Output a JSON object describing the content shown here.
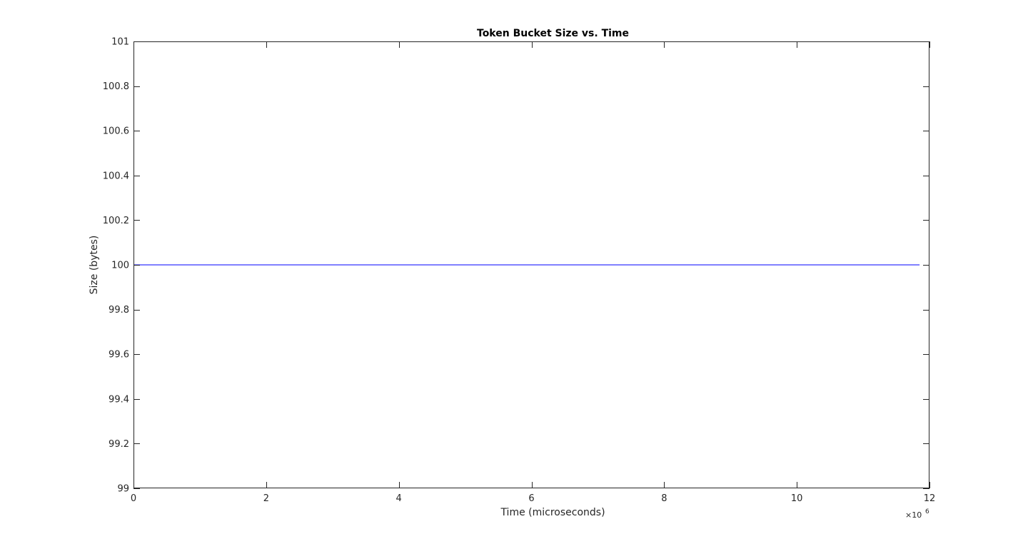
{
  "chart_data": {
    "type": "line",
    "title": "Token Bucket Size vs. Time",
    "xlabel": "Time (microseconds)",
    "ylabel": "Size (bytes)",
    "xlim": [
      0,
      12
    ],
    "ylim": [
      99,
      101
    ],
    "x_ticks": [
      0,
      2,
      4,
      6,
      8,
      10,
      12
    ],
    "x_tick_labels": [
      "0",
      "2",
      "4",
      "6",
      "8",
      "10",
      "12"
    ],
    "y_ticks": [
      99,
      99.2,
      99.4,
      99.6,
      99.8,
      100,
      100.2,
      100.4,
      100.6,
      100.8,
      101
    ],
    "y_tick_labels": [
      "99",
      "99.2",
      "99.4",
      "99.6",
      "99.8",
      "100",
      "100.2",
      "100.4",
      "100.6",
      "100.8",
      "101"
    ],
    "x_exponent_base": "×10",
    "x_exponent": "6",
    "grid": false,
    "series": [
      {
        "color": "#0000ff",
        "x": [
          0,
          11.85
        ],
        "y": [
          100,
          100
        ]
      }
    ]
  }
}
